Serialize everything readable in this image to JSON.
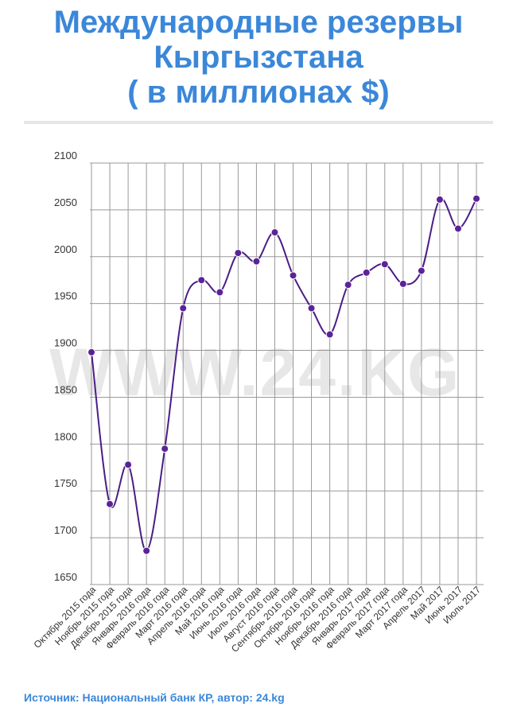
{
  "title_lines": [
    "Международные резервы",
    "Кыргызстана",
    "( в миллионах $)"
  ],
  "watermark": "WWW.24.KG",
  "source": "Источник: Национальный банк КР, автор: 24.kg",
  "colors": {
    "title": "#3b87d9",
    "line": "#4b1d86",
    "marker": "#5b2398",
    "grid": "#999999",
    "axis_text": "#333333"
  },
  "chart_data": {
    "type": "line",
    "title": "Международные резервы Кыргызстана ( в миллионах $)",
    "xlabel": "",
    "ylabel": "",
    "ylim": [
      1650,
      2100
    ],
    "yticks": [
      1650,
      1700,
      1750,
      1800,
      1850,
      1900,
      1950,
      2000,
      2050,
      2100
    ],
    "grid": true,
    "categories": [
      "Октябрь 2015 года",
      "Ноябрь 2015 года",
      "Декабрь 2015 года",
      "Январь 2016 года",
      "Февраль 2016 года",
      "Март 2016 года",
      "Апрель 2016 года",
      "Май 2016 года",
      "Июнь 2016 года",
      "Июль 2016 года",
      "Август 2016 года",
      "Сентябрь 2016 года",
      "Октябрь 2016 года",
      "Ноябрь 2016 года",
      "Декабрь 2016 года",
      "Январь 2017 года",
      "Февраль 2017 года",
      "Март 2017 года",
      "Апрель 2017",
      "Май 2017",
      "Июнь 2017",
      "Июль 2017"
    ],
    "series": [
      {
        "values": [
          1898,
          1736,
          1778,
          1686,
          1795,
          1945,
          1975,
          1962,
          2004,
          1995,
          2026,
          1980,
          1945,
          1917,
          1970,
          1983,
          1992,
          1971,
          1985,
          2061,
          2030,
          2062
        ]
      }
    ]
  }
}
